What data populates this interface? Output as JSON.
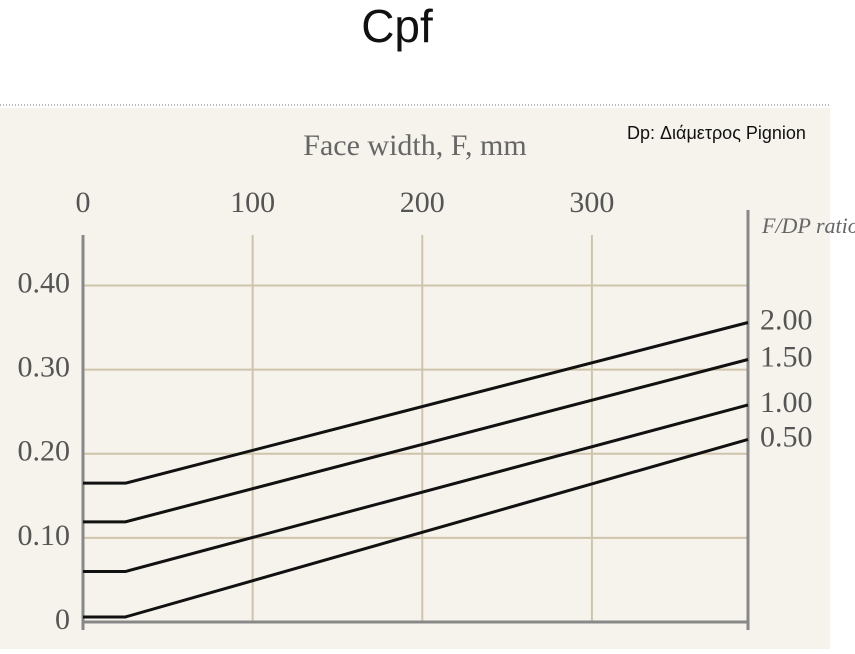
{
  "chart_data": {
    "type": "line",
    "title": "Cpf",
    "annotation": "Dp: Διάμετρος Pignion",
    "x_label": "Face width, F, mm",
    "legend_title": "F/DP ratio",
    "x": [
      0,
      25,
      392
    ],
    "series": [
      {
        "name": "2.00",
        "color": "#111111",
        "values": [
          0.165,
          0.165,
          0.356
        ]
      },
      {
        "name": "1.50",
        "color": "#111111",
        "values": [
          0.119,
          0.119,
          0.312
        ]
      },
      {
        "name": "1.00",
        "color": "#111111",
        "values": [
          0.06,
          0.06,
          0.258
        ]
      },
      {
        "name": "0.50",
        "color": "#111111",
        "values": [
          0.006,
          0.006,
          0.217
        ]
      }
    ],
    "xlim": [
      0,
      392
    ],
    "xticks": [
      0,
      100,
      200,
      300
    ],
    "ylim": [
      0,
      0.46
    ],
    "yticks": [
      0,
      {
        "value": 0.1,
        "label": "0.10"
      },
      {
        "value": 0.2,
        "label": "0.20"
      },
      {
        "value": 0.3,
        "label": "0.30"
      },
      {
        "value": 0.4,
        "label": "0.40"
      }
    ],
    "grid": true,
    "x_axis_position": "top"
  }
}
